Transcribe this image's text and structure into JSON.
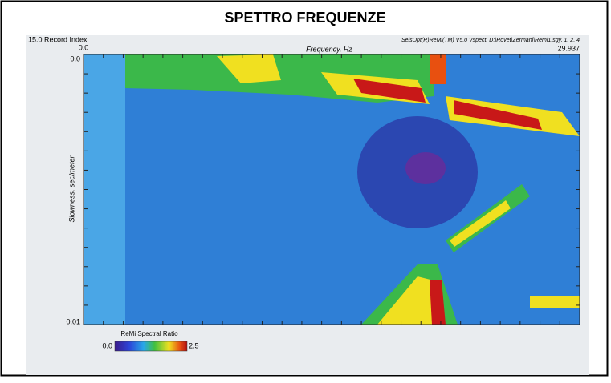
{
  "header": {
    "title": "SPETTRO FREQUENZE"
  },
  "plot": {
    "record_index": "15.0 Record Index",
    "x_axis": {
      "label": "Frequency, Hz",
      "min_label": "0.0",
      "max_label": "29.937"
    },
    "y_axis": {
      "label": "Slowness, sec/meter",
      "top_label": "0.0",
      "bottom_label": "0.01"
    },
    "software": "SeisOpt(R)ReMi(TM) V5.0 Vspect: D:\\Rovet\\Zermani\\Remi1.sgy, 1, 2, 4"
  },
  "colorbar": {
    "title": "ReMi Spectral Ratio",
    "min_label": "0.0",
    "max_label": "2.5"
  }
}
